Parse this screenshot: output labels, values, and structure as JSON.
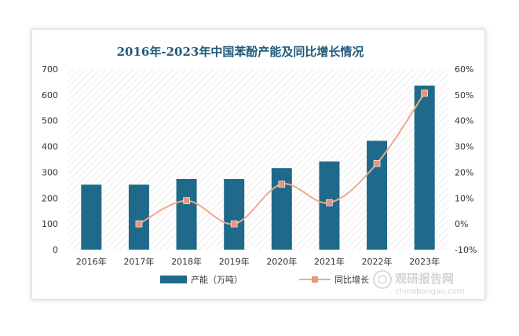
{
  "chart_data": {
    "type": "bar+line",
    "title": "2016年-2023年中国苯酚产能及同比增长情况",
    "categories": [
      "2016年",
      "2017年",
      "2018年",
      "2019年",
      "2020年",
      "2021年",
      "2022年",
      "2023年"
    ],
    "series": [
      {
        "name": "产能（万吨）",
        "type": "bar",
        "axis": "left",
        "values": [
          252,
          252,
          274,
          274,
          316,
          342,
          422,
          636
        ]
      },
      {
        "name": "同比增长",
        "type": "line",
        "axis": "right",
        "values": [
          null,
          0,
          9,
          0,
          15.4,
          8.2,
          23.4,
          50.7
        ]
      }
    ],
    "y_left": {
      "min": 0,
      "max": 700,
      "step": 100,
      "ticks": [
        "0",
        "100",
        "200",
        "300",
        "400",
        "500",
        "600",
        "700"
      ]
    },
    "y_right": {
      "min": -10,
      "max": 60,
      "step": 10,
      "ticks": [
        "-10%",
        "0%",
        "10%",
        "20%",
        "30%",
        "40%",
        "50%",
        "60%"
      ]
    },
    "legend_placement": "bottom",
    "colors": {
      "bar": "#1f6a8a",
      "line": "#f0a98c",
      "marker": "#e8957a",
      "title": "#1f5a7a"
    }
  },
  "watermark": {
    "brand": "观研报告网",
    "url": "chinabaogao.com"
  }
}
